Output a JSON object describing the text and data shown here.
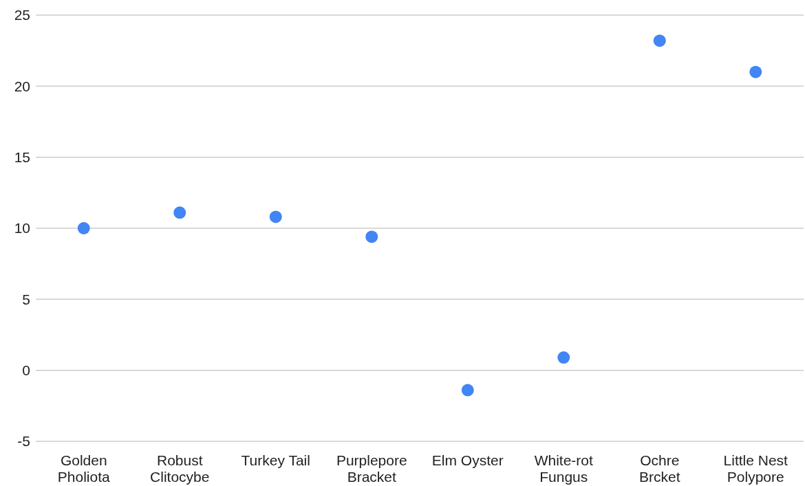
{
  "chart_data": {
    "type": "scatter",
    "categories": [
      "Golden Pholiota",
      "Robust Clitocybe",
      "Turkey Tail",
      "Purplepore Bracket",
      "Elm Oyster",
      "White-rot Fungus",
      "Ochre Brcket",
      "Little Nest Polypore"
    ],
    "values": [
      10.0,
      11.1,
      10.8,
      9.4,
      -1.4,
      0.9,
      23.2,
      21.0
    ],
    "color": "#4285f4",
    "ylim": [
      -5,
      25
    ],
    "yticks": [
      -5,
      0,
      5,
      10,
      15,
      20,
      25
    ],
    "grid": "y",
    "marker": "circle"
  }
}
